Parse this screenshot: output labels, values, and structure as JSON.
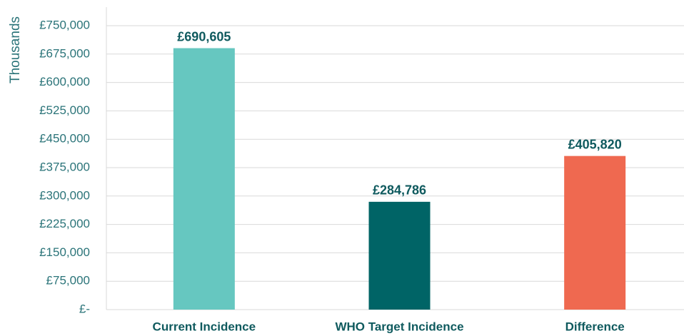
{
  "chart_data": {
    "type": "bar",
    "y_axis_label": "Thousands",
    "categories": [
      "Current Incidence",
      "WHO Target Incidence",
      "Difference"
    ],
    "values": [
      690605,
      284786,
      405820
    ],
    "value_labels": [
      "£690,605",
      "£284,786",
      "£405,820"
    ],
    "colors": [
      "#66c7c0",
      "#006466",
      "#ef6950"
    ],
    "ylim": [
      0,
      750000
    ],
    "yticks": [
      {
        "value": 0,
        "label": "£-"
      },
      {
        "value": 75000,
        "label": "£75,000"
      },
      {
        "value": 150000,
        "label": "£150,000"
      },
      {
        "value": 225000,
        "label": "£225,000"
      },
      {
        "value": 300000,
        "label": "£300,000"
      },
      {
        "value": 375000,
        "label": "£375,000"
      },
      {
        "value": 450000,
        "label": "£450,000"
      },
      {
        "value": 525000,
        "label": "£525,000"
      },
      {
        "value": 600000,
        "label": "£600,000"
      },
      {
        "value": 675000,
        "label": "£675,000"
      },
      {
        "value": 750000,
        "label": "£750,000"
      }
    ],
    "grid": true
  }
}
